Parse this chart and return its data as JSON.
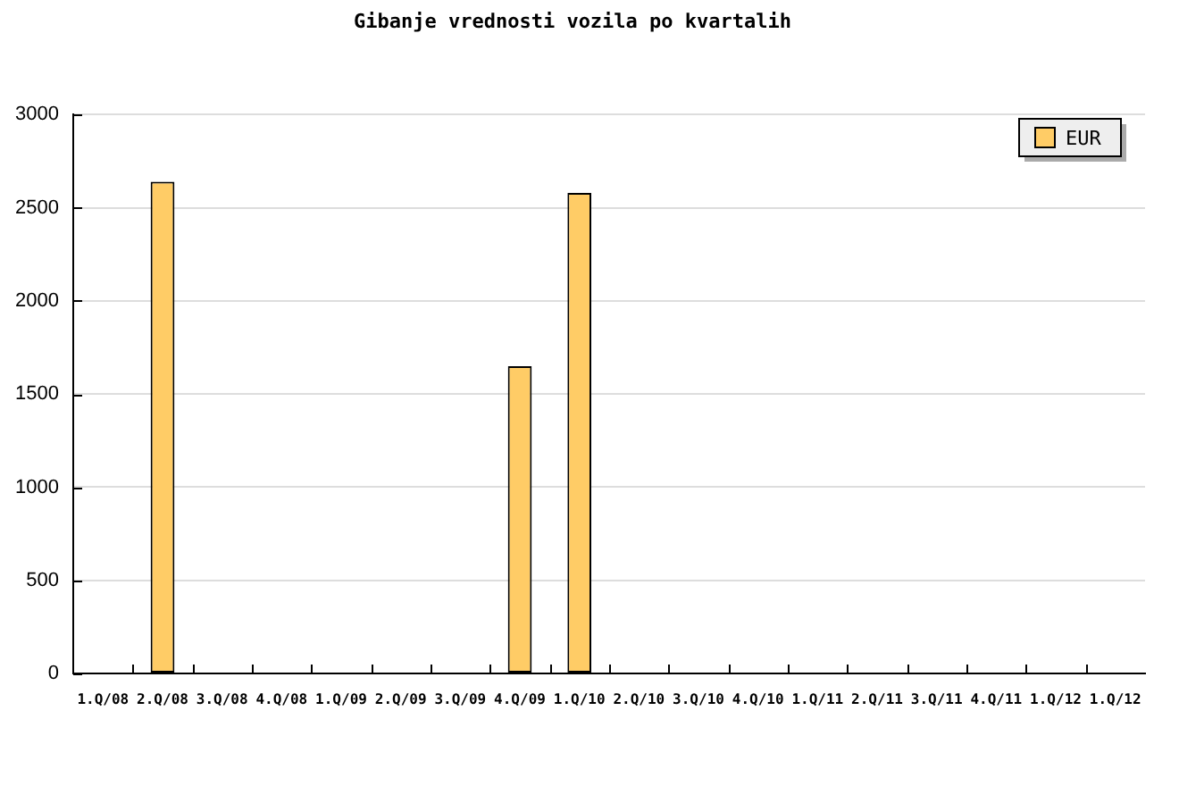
{
  "chart_data": {
    "type": "bar",
    "title": "Gibanje vrednosti vozila po kvartalih",
    "categories": [
      "1.Q/08",
      "2.Q/08",
      "3.Q/08",
      "4.Q/08",
      "1.Q/09",
      "2.Q/09",
      "3.Q/09",
      "4.Q/09",
      "1.Q/10",
      "2.Q/10",
      "3.Q/10",
      "4.Q/10",
      "1.Q/11",
      "2.Q/11",
      "3.Q/11",
      "4.Q/11",
      "1.Q/12",
      "1.Q/12"
    ],
    "series": [
      {
        "name": "EUR",
        "color": "#ffcc66",
        "values": [
          null,
          2640,
          null,
          null,
          null,
          null,
          null,
          1650,
          2580,
          null,
          null,
          null,
          null,
          null,
          null,
          null,
          null,
          null
        ]
      }
    ],
    "ylim": [
      0,
      3000
    ],
    "yticks": [
      0,
      500,
      1000,
      1500,
      2000,
      2500,
      3000
    ],
    "grid": "y",
    "legend": "top right"
  }
}
